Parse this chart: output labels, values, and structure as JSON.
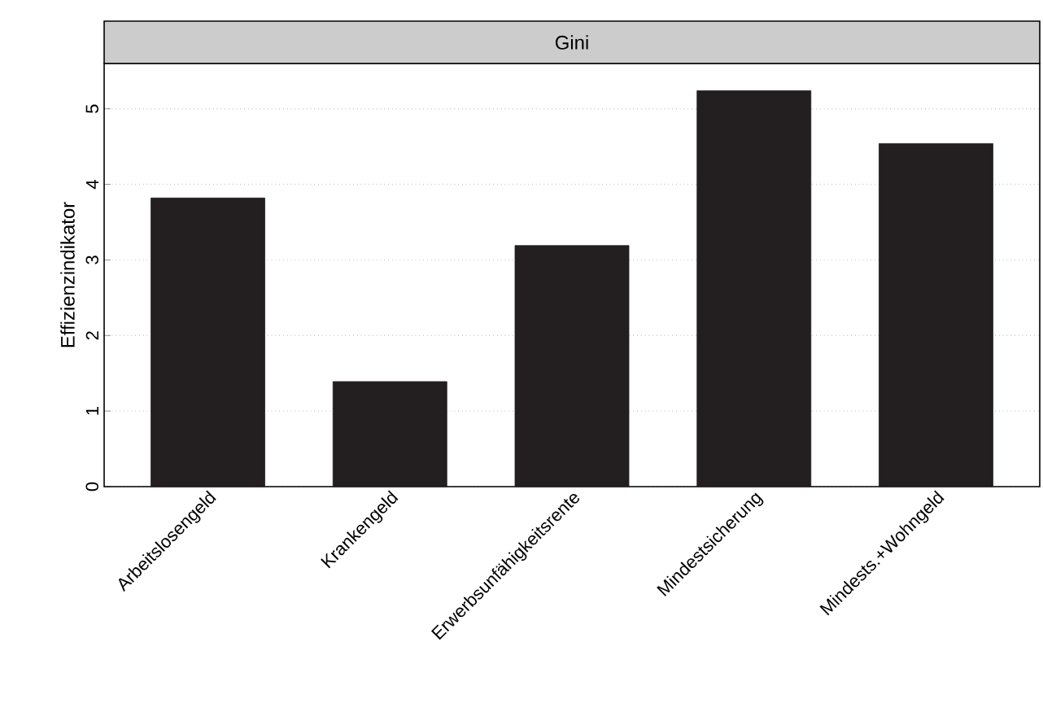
{
  "chart_data": {
    "type": "bar",
    "title": "Gini",
    "ylabel": "Effizienzindikator",
    "categories": [
      "Arbeitslosengeld",
      "Krankengeld",
      "Erwerbsunfähigkeitsrente",
      "Mindestsicherung",
      "Mindests.+Wohngeld"
    ],
    "values": [
      3.82,
      1.39,
      3.19,
      5.24,
      4.54
    ],
    "color": "#231f20",
    "ylim": [
      0,
      5.6
    ],
    "yticks": [
      0,
      1,
      2,
      3,
      4,
      5
    ],
    "grid": "y"
  }
}
